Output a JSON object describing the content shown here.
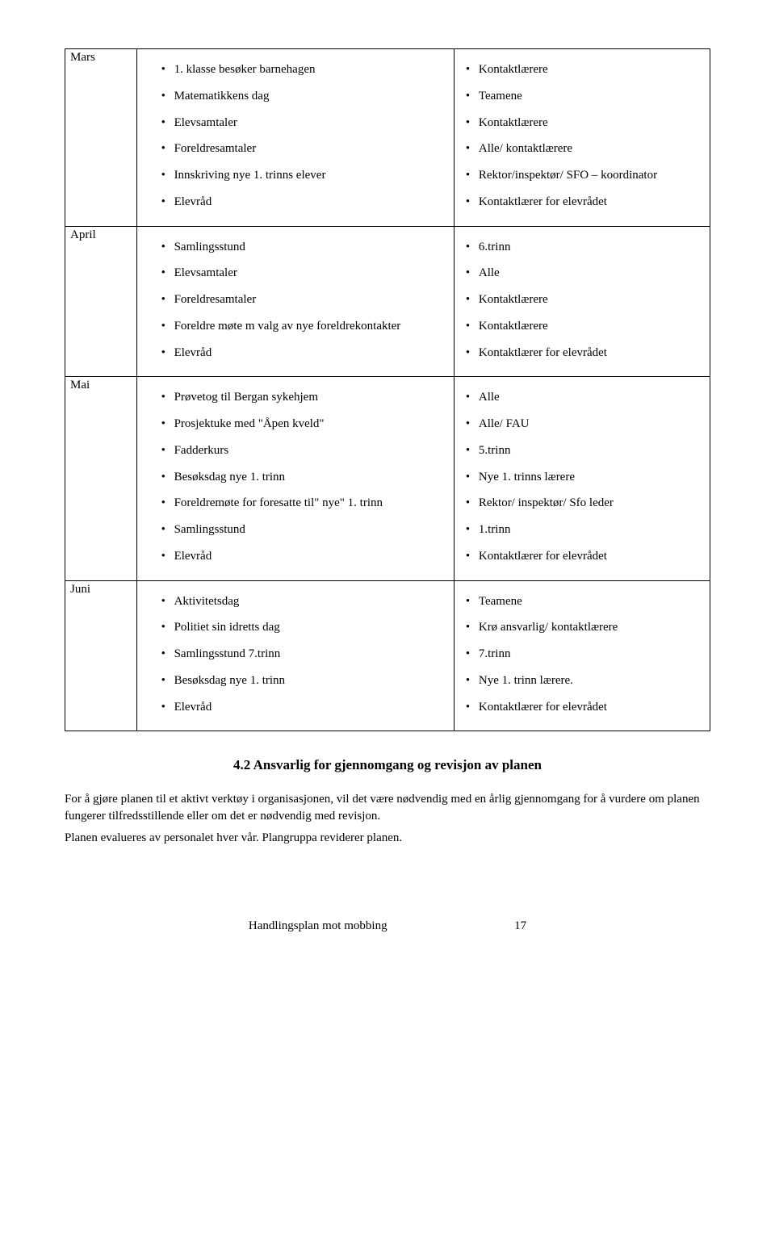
{
  "rows": [
    {
      "month": "Mars",
      "activities": [
        "1. klasse besøker barnehagen",
        "Matematikkens dag",
        "Elevsamtaler",
        "Foreldresamtaler",
        "Innskriving nye 1. trinns elever",
        "Elevråd"
      ],
      "responsible": [
        "Kontaktlærere",
        "Teamene",
        "Kontaktlærere",
        "Alle/ kontaktlærere",
        "Rektor/inspektør/ SFO – koordinator",
        "Kontaktlærer for elevrådet"
      ]
    },
    {
      "month": "April",
      "activities": [
        "Samlingsstund",
        "Elevsamtaler",
        "Foreldresamtaler",
        "Foreldre møte m valg av nye foreldrekontakter",
        "Elevråd"
      ],
      "responsible": [
        "6.trinn",
        "Alle",
        "Kontaktlærere",
        "Kontaktlærere",
        "Kontaktlærer for elevrådet"
      ]
    },
    {
      "month": "Mai",
      "activities": [
        "Prøvetog til Bergan sykehjem",
        "Prosjektuke med \"Åpen kveld\"",
        "Fadderkurs",
        "Besøksdag nye 1. trinn",
        "Foreldremøte for foresatte til\" nye\" 1. trinn",
        "Samlingsstund",
        "Elevråd"
      ],
      "responsible": [
        "Alle",
        "Alle/ FAU",
        "5.trinn",
        "Nye 1. trinns lærere",
        "Rektor/ inspektør/ Sfo leder",
        "1.trinn",
        "Kontaktlærer for elevrådet"
      ]
    },
    {
      "month": "Juni",
      "activities": [
        "Aktivitetsdag",
        "Politiet sin idretts dag",
        "Samlingsstund 7.trinn",
        "Besøksdag nye 1. trinn",
        "Elevråd"
      ],
      "responsible": [
        "Teamene",
        "Krø ansvarlig/ kontaktlærere",
        "7.trinn",
        "Nye 1. trinn lærere.",
        "Kontaktlærer for elevrådet"
      ]
    }
  ],
  "section_heading": "4.2 Ansvarlig for gjennomgang og revisjon av planen",
  "para1": "For å gjøre planen til et aktivt verktøy i organisasjonen, vil det være nødvendig med en årlig gjennomgang for å vurdere om planen fungerer tilfredsstillende eller om det er nødvendig med revisjon.",
  "para2": "Planen evalueres av personalet hver vår. Plangruppa reviderer planen.",
  "footer_title": "Handlingsplan mot mobbing",
  "footer_page": "17"
}
